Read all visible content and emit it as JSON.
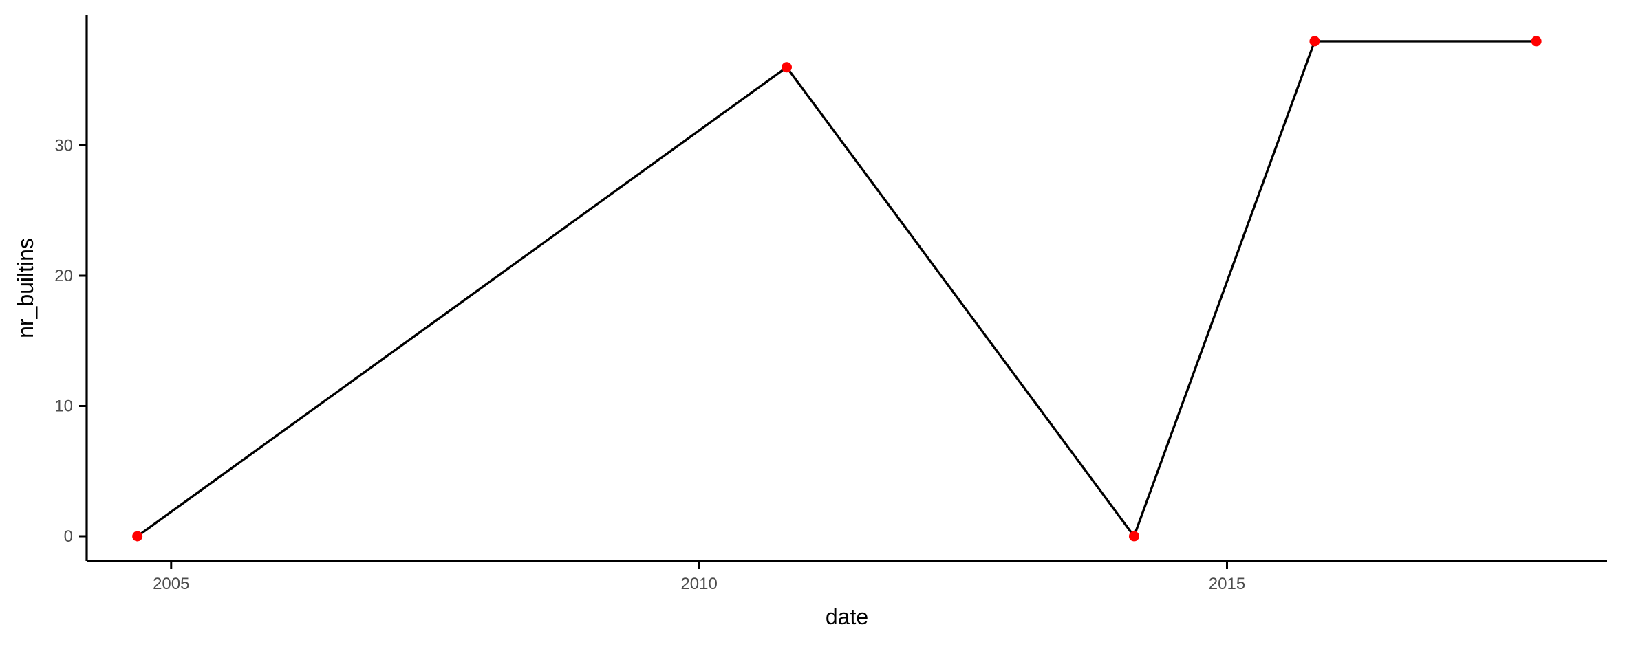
{
  "chart_data": {
    "type": "line",
    "title": "",
    "xlabel": "date",
    "ylabel": "nr_builtins",
    "x_is_date": true,
    "xlim": [
      2004.2,
      2018.6
    ],
    "ylim": [
      -1.9,
      40
    ],
    "x_ticks": [
      {
        "value": 2005,
        "label": "2005"
      },
      {
        "value": 2010,
        "label": "2010"
      },
      {
        "value": 2015,
        "label": "2015"
      }
    ],
    "y_ticks": [
      {
        "value": 0,
        "label": "0"
      },
      {
        "value": 10,
        "label": "10"
      },
      {
        "value": 20,
        "label": "20"
      },
      {
        "value": 30,
        "label": "30"
      }
    ],
    "grid": false,
    "legend": "none",
    "series": [
      {
        "name": "nr_builtins",
        "line_color": "#000000",
        "point_color": "#ff0000",
        "x": [
          2004.68,
          2010.83,
          2014.12,
          2015.83,
          2017.93
        ],
        "y": [
          0,
          36,
          0,
          38,
          38
        ]
      }
    ]
  }
}
